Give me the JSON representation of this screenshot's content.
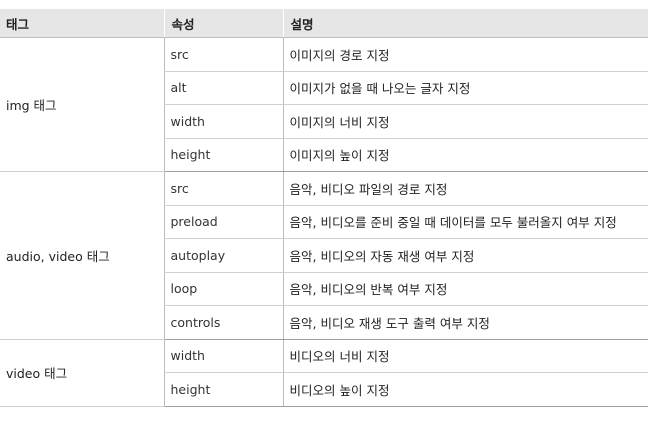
{
  "headers": [
    "태그",
    "속성",
    "설명"
  ],
  "groups": [
    {
      "tag": "img 태그",
      "rows": [
        {
          "attr": "src",
          "desc": "이미지의 경로 지정"
        },
        {
          "attr": "alt",
          "desc": "이미지가 없을 때 나오는 글자 지정"
        },
        {
          "attr": "width",
          "desc": "이미지의 너비 지정"
        },
        {
          "attr": "height",
          "desc": "이미지의 높이 지정"
        }
      ]
    },
    {
      "tag": "audio, video 태그",
      "rows": [
        {
          "attr": "src",
          "desc": "음악, 비디오 파일의 경로 지정"
        },
        {
          "attr": "preload",
          "desc": "음악, 비디오를 준비 중일 때 데이터를 모두 불러올지 여부 지정"
        },
        {
          "attr": "autoplay",
          "desc": "음악, 비디오의 자동 재생 여부 지정"
        },
        {
          "attr": "loop",
          "desc": "음악, 비디오의 반복 여부 지정"
        },
        {
          "attr": "controls",
          "desc": "음악, 비디오 재생 도구 출력 여부 지정"
        }
      ]
    },
    {
      "tag": "video 태그",
      "rows": [
        {
          "attr": "width",
          "desc": "비디오의 너비 지정"
        },
        {
          "attr": "height",
          "desc": "비디오의 높이 지정"
        }
      ]
    }
  ]
}
